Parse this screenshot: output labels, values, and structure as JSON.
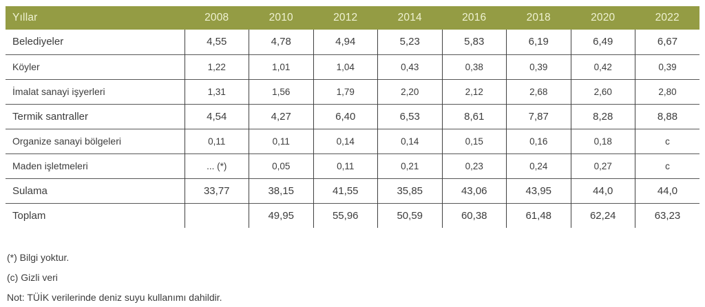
{
  "table": {
    "header": {
      "label": "Yıllar",
      "years": [
        "2008",
        "2010",
        "2012",
        "2014",
        "2016",
        "2018",
        "2020",
        "2022"
      ]
    },
    "rows": [
      {
        "label": "Belediyeler",
        "values": [
          "4,55",
          "4,78",
          "4,94",
          "5,23",
          "5,83",
          "6,19",
          "6,49",
          "6,67"
        ],
        "small": false
      },
      {
        "label": "Köyler",
        "values": [
          "1,22",
          "1,01",
          "1,04",
          "0,43",
          "0,38",
          "0,39",
          "0,42",
          "0,39"
        ],
        "small": true
      },
      {
        "label": "İmalat sanayi işyerleri",
        "values": [
          "1,31",
          "1,56",
          "1,79",
          "2,20",
          "2,12",
          "2,68",
          "2,60",
          "2,80"
        ],
        "small": true
      },
      {
        "label": "Termik santraller",
        "values": [
          "4,54",
          "4,27",
          "6,40",
          "6,53",
          "8,61",
          "7,87",
          "8,28",
          "8,88"
        ],
        "small": false
      },
      {
        "label": "Organize sanayi bölgeleri",
        "values": [
          "0,11",
          "0,11",
          "0,14",
          "0,14",
          "0,15",
          "0,16",
          "0,18",
          "c"
        ],
        "small": true
      },
      {
        "label": "Maden işletmeleri",
        "values": [
          "... (*)",
          "0,05",
          "0,11",
          "0,21",
          "0,23",
          "0,24",
          "0,27",
          "c"
        ],
        "small": true
      },
      {
        "label": "Sulama",
        "values": [
          "33,77",
          "38,15",
          "41,55",
          "35,85",
          "43,06",
          "43,95",
          "44,0",
          "44,0"
        ],
        "small": false
      },
      {
        "label": "Toplam",
        "values": [
          "",
          "49,95",
          "55,96",
          "50,59",
          "60,38",
          "61,48",
          "62,24",
          "63,23"
        ],
        "small": false
      }
    ]
  },
  "footnotes": {
    "asterisk": "(*) Bilgi yoktur.",
    "confidential": "(c) Gizli veri",
    "note": "Not: TÜİK verilerinde deniz suyu kullanımı dahildir."
  },
  "colors": {
    "header_bg": "#949C44",
    "header_text": "#EFF2D2",
    "body_text": "#3C3C3C",
    "horizontal_line": "#565656",
    "vertical_line": "#3F3F3F",
    "page_bg": "#FFFFFF"
  }
}
